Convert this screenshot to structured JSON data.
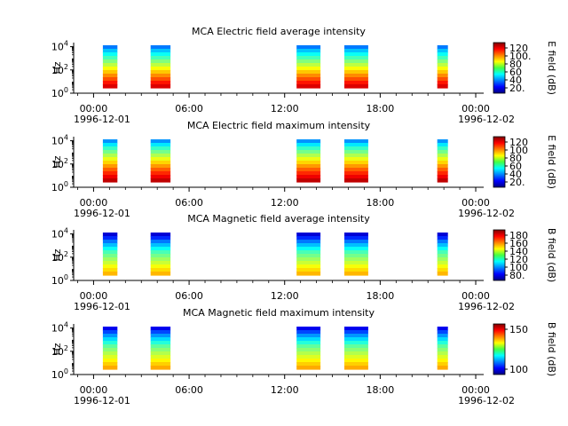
{
  "chart_data": [
    {
      "type": "heatmap",
      "title": "MCA  Electric field average intensity",
      "ylabel": "Hz",
      "colorbar_label": "E field (dB)",
      "colorbar_ticks": [
        "120",
        "100.",
        "80",
        "60",
        "40",
        "20."
      ],
      "colorbar_range": [
        15,
        125
      ],
      "y_ticks": [
        "10^4",
        "10^2",
        "10^0"
      ],
      "x_ticks": [
        "00:00",
        "06:00",
        "12:00",
        "18:00",
        "00:00"
      ],
      "x_start_date": "1996-12-01",
      "x_end_date": "1996-12-02",
      "passes": [
        {
          "start": "00:35",
          "end": "01:30"
        },
        {
          "start": "03:35",
          "end": "04:50"
        },
        {
          "start": "12:45",
          "end": "14:15"
        },
        {
          "start": "15:45",
          "end": "17:15"
        },
        {
          "start": "21:35",
          "end": "22:15"
        }
      ],
      "intensity_profile": [
        {
          "log10_freq": 0.5,
          "value": 115
        },
        {
          "log10_freq": 1.5,
          "value": 95
        },
        {
          "log10_freq": 2.5,
          "value": 75
        },
        {
          "log10_freq": 3.5,
          "value": 55
        },
        {
          "log10_freq": 4.2,
          "value": 38
        }
      ]
    },
    {
      "type": "heatmap",
      "title": "MCA  Electric field maximum intensity",
      "ylabel": "Hz",
      "colorbar_label": "E field (dB)",
      "colorbar_ticks": [
        "120",
        "100",
        "80",
        "60",
        "40",
        "20."
      ],
      "colorbar_range": [
        15,
        125
      ],
      "y_ticks": [
        "10^4",
        "10^2",
        "10^0"
      ],
      "x_ticks": [
        "00:00",
        "06:00",
        "12:00",
        "18:00",
        "00:00"
      ],
      "x_start_date": "1996-12-01",
      "x_end_date": "1996-12-02",
      "passes": [
        {
          "start": "00:35",
          "end": "01:30"
        },
        {
          "start": "03:35",
          "end": "04:50"
        },
        {
          "start": "12:45",
          "end": "14:15"
        },
        {
          "start": "15:45",
          "end": "17:15"
        },
        {
          "start": "21:35",
          "end": "22:15"
        }
      ],
      "intensity_profile": [
        {
          "log10_freq": 0.5,
          "value": 118
        },
        {
          "log10_freq": 1.5,
          "value": 100
        },
        {
          "log10_freq": 2.5,
          "value": 80
        },
        {
          "log10_freq": 3.5,
          "value": 60
        },
        {
          "log10_freq": 4.2,
          "value": 40
        }
      ]
    },
    {
      "type": "heatmap",
      "title": "MCA  Magnetic field average intensity",
      "ylabel": "Hz",
      "colorbar_label": "B field (dB)",
      "colorbar_ticks": [
        "180",
        "160",
        "140",
        "120",
        "100",
        "80."
      ],
      "colorbar_range": [
        70,
        185
      ],
      "y_ticks": [
        "10^4",
        "10^2",
        "10^0"
      ],
      "x_ticks": [
        "00:00",
        "06:00",
        "12:00",
        "18:00",
        "00:00"
      ],
      "x_start_date": "1996-12-01",
      "x_end_date": "1996-12-02",
      "passes": [
        {
          "start": "00:35",
          "end": "01:30"
        },
        {
          "start": "03:35",
          "end": "04:50"
        },
        {
          "start": "12:45",
          "end": "14:15"
        },
        {
          "start": "15:45",
          "end": "17:15"
        },
        {
          "start": "21:35",
          "end": "22:15"
        }
      ],
      "intensity_profile": [
        {
          "log10_freq": 0.5,
          "value": 150
        },
        {
          "log10_freq": 1.5,
          "value": 135
        },
        {
          "log10_freq": 2.5,
          "value": 120
        },
        {
          "log10_freq": 3.5,
          "value": 95
        },
        {
          "log10_freq": 4.2,
          "value": 75
        }
      ]
    },
    {
      "type": "heatmap",
      "title": "MCA  Magnetic field maximum intensity",
      "ylabel": "Hz",
      "colorbar_label": "B field (dB)",
      "colorbar_ticks": [
        "150",
        "100"
      ],
      "colorbar_range": [
        70,
        190
      ],
      "y_ticks": [
        "10^4",
        "10^2",
        "10^0"
      ],
      "x_ticks": [
        "00:00",
        "06:00",
        "12:00",
        "18:00",
        "00:00"
      ],
      "x_start_date": "1996-12-01",
      "x_end_date": "1996-12-02",
      "passes": [
        {
          "start": "00:35",
          "end": "01:30"
        },
        {
          "start": "03:35",
          "end": "04:50"
        },
        {
          "start": "12:45",
          "end": "14:15"
        },
        {
          "start": "15:45",
          "end": "17:15"
        },
        {
          "start": "21:35",
          "end": "22:15"
        }
      ],
      "intensity_profile": [
        {
          "log10_freq": 0.5,
          "value": 155
        },
        {
          "log10_freq": 1.5,
          "value": 140
        },
        {
          "log10_freq": 2.5,
          "value": 125
        },
        {
          "log10_freq": 3.5,
          "value": 100
        },
        {
          "log10_freq": 4.2,
          "value": 78
        }
      ]
    }
  ]
}
